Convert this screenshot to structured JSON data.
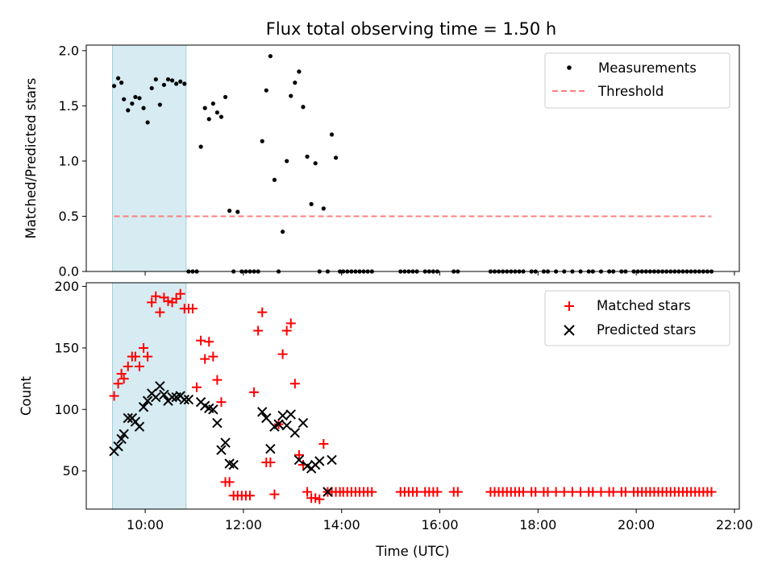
{
  "title": "Flux total observing time = 1.50 h",
  "chart_data": [
    {
      "type": "scatter",
      "ylabel": "Matched/Predicted stars",
      "xlabel": "",
      "x_range_hours": [
        8.8,
        22.1
      ],
      "ylim": [
        0,
        2.05
      ],
      "yticks": [
        "0.0",
        "0.5",
        "1.0",
        "1.5",
        "2.0"
      ],
      "shaded_interval": {
        "start": "09:20",
        "end": "10:50",
        "color": "#add8e6"
      },
      "legend": {
        "placement": "upper right",
        "entries": [
          "Measurements",
          "Threshold"
        ]
      },
      "series": [
        {
          "name": "Measurements",
          "marker": "dot",
          "color": "#000000",
          "x": [
            "09:22",
            "09:27",
            "09:31",
            "09:34",
            "09:39",
            "09:44",
            "09:48",
            "09:53",
            "09:58",
            "10:03",
            "10:08",
            "10:13",
            "10:18",
            "10:23",
            "10:28",
            "10:33",
            "10:38",
            "10:43",
            "10:48",
            "10:53",
            "10:58",
            "11:03",
            "11:08",
            "11:13",
            "11:18",
            "11:23",
            "11:28",
            "11:33",
            "11:38",
            "11:43",
            "11:48",
            "11:53",
            "11:58",
            "12:03",
            "12:08",
            "12:13",
            "12:18",
            "12:23",
            "12:28",
            "12:33",
            "12:38",
            "12:43",
            "12:48",
            "12:53",
            "12:58",
            "13:03",
            "13:08",
            "13:13",
            "13:18",
            "13:23",
            "13:28",
            "13:33",
            "13:38",
            "13:43",
            "13:48",
            "13:53",
            "13:58",
            "14:02",
            "14:07",
            "14:12",
            "14:17",
            "14:22",
            "14:27",
            "14:32",
            "14:37",
            "15:12",
            "15:17",
            "15:22",
            "15:27",
            "15:32",
            "15:42",
            "15:47",
            "15:52",
            "15:57",
            "16:17",
            "16:22",
            "17:02",
            "17:07",
            "17:12",
            "17:17",
            "17:22",
            "17:27",
            "17:32",
            "17:37",
            "17:42",
            "17:52",
            "17:57",
            "18:07",
            "18:12",
            "18:22",
            "18:32",
            "18:42",
            "18:52",
            "19:02",
            "19:07",
            "19:17",
            "19:27",
            "19:32",
            "19:42",
            "19:47",
            "19:57",
            "20:02",
            "20:07",
            "20:12",
            "20:17",
            "20:22",
            "20:27",
            "20:32",
            "20:37",
            "20:42",
            "20:47",
            "20:52",
            "20:57",
            "21:02",
            "21:07",
            "21:12",
            "21:17",
            "21:22",
            "21:27",
            "21:32"
          ],
          "y": [
            1.68,
            1.75,
            1.71,
            1.56,
            1.46,
            1.52,
            1.58,
            1.57,
            1.48,
            1.35,
            1.66,
            1.74,
            1.51,
            1.69,
            1.74,
            1.73,
            1.7,
            1.72,
            1.7,
            0,
            0,
            0,
            1.13,
            1.48,
            1.38,
            1.52,
            1.44,
            1.4,
            1.58,
            0.55,
            0,
            0.54,
            0,
            0,
            0,
            0,
            0,
            1.18,
            1.64,
            1.95,
            0.83,
            0,
            0.36,
            1.0,
            1.59,
            1.71,
            1.81,
            1.49,
            1.04,
            0.61,
            0.98,
            0,
            0.57,
            0,
            1.24,
            1.03,
            0,
            0,
            0,
            0,
            0,
            0,
            0,
            0,
            0,
            0,
            0,
            0,
            0,
            0,
            0,
            0,
            0,
            0,
            0,
            0,
            0,
            0,
            0,
            0,
            0,
            0,
            0,
            0,
            0,
            0,
            0,
            0,
            0,
            0,
            0,
            0,
            0,
            0,
            0,
            0,
            0,
            0,
            0,
            0,
            0,
            0,
            0,
            0,
            0,
            0,
            0,
            0,
            0,
            0,
            0,
            0,
            0,
            0,
            0,
            0,
            0,
            0,
            0,
            0
          ]
        },
        {
          "name": "Threshold",
          "style": "dashed",
          "color": "#ff7f7f",
          "x": [
            "09:22",
            "21:32"
          ],
          "y": [
            0.5,
            0.5
          ]
        }
      ]
    },
    {
      "type": "scatter",
      "ylabel": "Count",
      "xlabel": "Time (UTC)",
      "x_range_hours": [
        8.8,
        22.1
      ],
      "xticks": [
        "10:00",
        "12:00",
        "14:00",
        "16:00",
        "18:00",
        "20:00",
        "22:00"
      ],
      "ylim": [
        19,
        203
      ],
      "yticks": [
        "50",
        "100",
        "150",
        "200"
      ],
      "shaded_interval": {
        "start": "09:20",
        "end": "10:50",
        "color": "#add8e6"
      },
      "legend": {
        "placement": "upper right",
        "entries": [
          "Matched stars",
          "Predicted stars"
        ]
      },
      "series": [
        {
          "name": "Matched stars",
          "marker": "plus",
          "color": "#ff0000",
          "x": [
            "09:22",
            "09:27",
            "09:31",
            "09:34",
            "09:39",
            "09:44",
            "09:48",
            "09:53",
            "09:58",
            "10:03",
            "10:08",
            "10:13",
            "10:18",
            "10:23",
            "10:28",
            "10:33",
            "10:38",
            "10:43",
            "10:48",
            "10:53",
            "10:58",
            "11:03",
            "11:08",
            "11:13",
            "11:18",
            "11:23",
            "11:28",
            "11:33",
            "11:38",
            "11:43",
            "11:48",
            "11:53",
            "11:58",
            "12:03",
            "12:08",
            "12:13",
            "12:18",
            "12:23",
            "12:28",
            "12:33",
            "12:38",
            "12:43",
            "12:48",
            "12:53",
            "12:58",
            "13:03",
            "13:08",
            "13:13",
            "13:18",
            "13:23",
            "13:28",
            "13:33",
            "13:38",
            "13:43",
            "13:48",
            "13:53",
            "13:58",
            "14:02",
            "14:07",
            "14:12",
            "14:17",
            "14:22",
            "14:27",
            "14:32",
            "14:37",
            "15:12",
            "15:17",
            "15:22",
            "15:27",
            "15:32",
            "15:42",
            "15:47",
            "15:52",
            "15:57",
            "16:17",
            "16:22",
            "17:02",
            "17:07",
            "17:12",
            "17:17",
            "17:22",
            "17:27",
            "17:32",
            "17:37",
            "17:42",
            "17:52",
            "17:57",
            "18:07",
            "18:12",
            "18:22",
            "18:32",
            "18:42",
            "18:52",
            "19:02",
            "19:07",
            "19:17",
            "19:27",
            "19:32",
            "19:42",
            "19:47",
            "19:57",
            "20:02",
            "20:07",
            "20:12",
            "20:17",
            "20:22",
            "20:27",
            "20:32",
            "20:37",
            "20:42",
            "20:47",
            "20:52",
            "20:57",
            "21:02",
            "21:07",
            "21:12",
            "21:17",
            "21:22",
            "21:27",
            "21:32"
          ],
          "y": [
            111,
            121,
            129,
            125,
            135,
            143,
            143,
            135,
            150,
            143,
            187,
            192,
            179,
            191,
            188,
            187,
            190,
            194,
            182,
            182,
            182,
            118,
            156,
            141,
            155,
            143,
            124,
            106,
            41,
            41,
            30,
            30,
            30,
            30,
            30,
            114,
            164,
            179,
            57,
            57,
            31,
            88,
            145,
            164,
            170,
            121,
            63,
            55,
            33,
            28,
            28,
            27,
            72,
            33,
            33,
            33,
            33,
            33,
            33,
            33,
            33,
            33,
            33,
            33,
            33,
            33,
            33,
            33,
            33,
            33,
            33,
            33,
            33,
            33,
            33,
            33,
            33,
            33,
            33,
            33,
            33,
            33,
            33,
            33,
            33,
            33,
            33,
            33,
            33,
            33,
            33,
            33,
            33,
            33,
            33,
            33,
            33,
            33,
            33,
            33,
            33,
            33,
            33,
            33,
            33,
            33,
            33,
            33,
            33,
            33,
            33,
            33,
            33,
            33,
            33,
            33,
            33,
            33,
            33,
            33
          ]
        },
        {
          "name": "Predicted stars",
          "marker": "x",
          "color": "#000000",
          "x": [
            "09:22",
            "09:27",
            "09:31",
            "09:34",
            "09:39",
            "09:44",
            "09:48",
            "09:53",
            "09:58",
            "10:03",
            "10:08",
            "10:13",
            "10:18",
            "10:23",
            "10:28",
            "10:33",
            "10:38",
            "10:43",
            "10:48",
            "10:53",
            "11:08",
            "11:13",
            "11:18",
            "11:23",
            "11:28",
            "11:33",
            "11:38",
            "11:43",
            "11:48",
            "12:23",
            "12:28",
            "12:33",
            "12:38",
            "12:43",
            "12:48",
            "12:53",
            "12:58",
            "13:03",
            "13:08",
            "13:13",
            "13:18",
            "13:23",
            "13:28",
            "13:33",
            "13:43",
            "13:48"
          ],
          "y": [
            66,
            70,
            76,
            80,
            93,
            93,
            90,
            86,
            102,
            107,
            113,
            110,
            119,
            112,
            107,
            110,
            110,
            111,
            108,
            108,
            106,
            103,
            101,
            100,
            89,
            67,
            73,
            56,
            55,
            98,
            93,
            68,
            86,
            88,
            95,
            87,
            96,
            81,
            59,
            89,
            54,
            52,
            55,
            58,
            33,
            59
          ]
        }
      ]
    }
  ]
}
